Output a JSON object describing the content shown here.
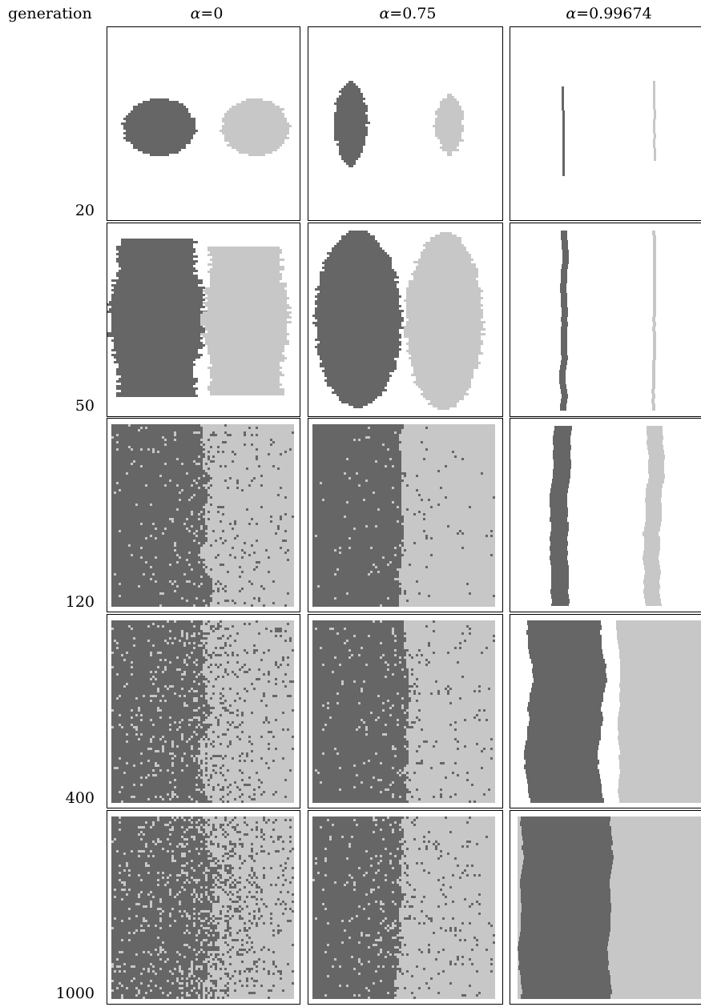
{
  "header": {
    "row_axis_label": "generation",
    "columns": [
      {
        "alpha_symbol": "α",
        "eq": "=0"
      },
      {
        "alpha_symbol": "α",
        "eq": "=0.75"
      },
      {
        "alpha_symbol": "α",
        "eq": "=0.99674"
      }
    ]
  },
  "rows": [
    {
      "generation": "20"
    },
    {
      "generation": "50"
    },
    {
      "generation": "120"
    },
    {
      "generation": "400"
    },
    {
      "generation": "1000"
    }
  ],
  "colors": {
    "dark": "#666666",
    "light": "#c7c7c7",
    "background": "#ffffff",
    "frame": "#000000"
  }
}
